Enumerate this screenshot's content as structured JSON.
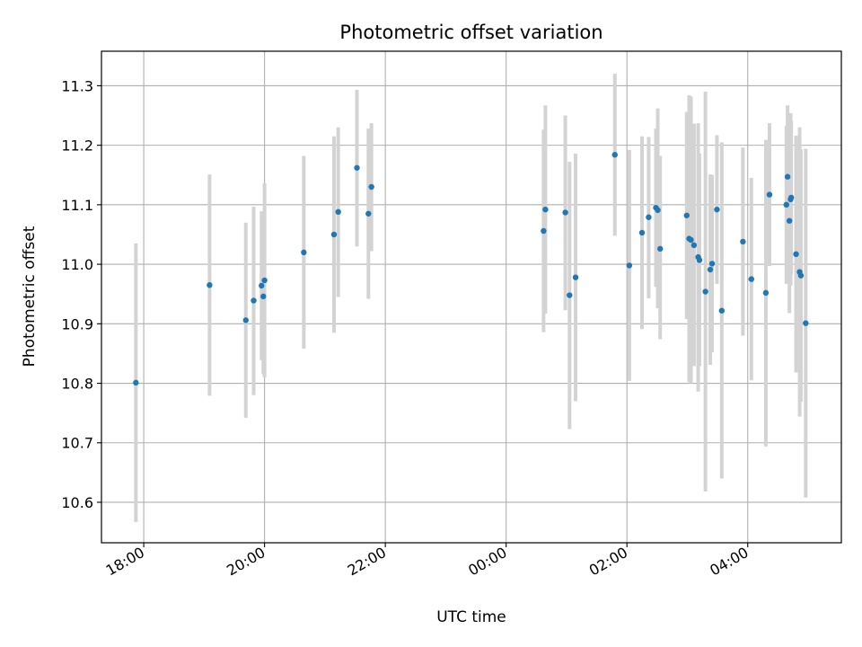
{
  "chart_data": {
    "type": "scatter",
    "title": "Photometric offset variation",
    "xlabel": "UTC time",
    "ylabel": "Photometric offset",
    "x_unit": "hours since 00:00 UTC of first day",
    "xlim": [
      -6.7,
      5.55
    ],
    "ylim": [
      10.532,
      11.358
    ],
    "xticks": [
      {
        "value": -6,
        "label": "18:00"
      },
      {
        "value": -4,
        "label": "20:00"
      },
      {
        "value": -2,
        "label": "22:00"
      },
      {
        "value": 0,
        "label": "00:00"
      },
      {
        "value": 2,
        "label": "02:00"
      },
      {
        "value": 4,
        "label": "04:00"
      }
    ],
    "yticks": [
      {
        "value": 10.6,
        "label": "10.6"
      },
      {
        "value": 10.7,
        "label": "10.7"
      },
      {
        "value": 10.8,
        "label": "10.8"
      },
      {
        "value": 10.9,
        "label": "10.9"
      },
      {
        "value": 11.0,
        "label": "11.0"
      },
      {
        "value": 11.1,
        "label": "11.1"
      },
      {
        "value": 11.2,
        "label": "11.2"
      },
      {
        "value": 11.3,
        "label": "11.3"
      }
    ],
    "grid": true,
    "colors": {
      "point": "#1f77b4",
      "errorbar": "#d3d3d3",
      "grid": "#b0b0b0"
    },
    "points": [
      {
        "x": -6.13,
        "y": 10.801,
        "lo": 10.567,
        "hi": 11.035
      },
      {
        "x": -4.91,
        "y": 10.965,
        "lo": 10.779,
        "hi": 11.151
      },
      {
        "x": -4.31,
        "y": 10.906,
        "lo": 10.742,
        "hi": 11.07
      },
      {
        "x": -4.18,
        "y": 10.939,
        "lo": 10.78,
        "hi": 11.097
      },
      {
        "x": -4.05,
        "y": 10.964,
        "lo": 10.839,
        "hi": 11.089
      },
      {
        "x": -4.02,
        "y": 10.946,
        "lo": 10.815,
        "hi": 11.077
      },
      {
        "x": -4.0,
        "y": 10.973,
        "lo": 10.81,
        "hi": 11.136
      },
      {
        "x": -3.35,
        "y": 11.02,
        "lo": 10.858,
        "hi": 11.182
      },
      {
        "x": -2.85,
        "y": 11.05,
        "lo": 10.885,
        "hi": 11.215
      },
      {
        "x": -2.78,
        "y": 11.088,
        "lo": 10.945,
        "hi": 11.23
      },
      {
        "x": -2.47,
        "y": 11.162,
        "lo": 11.03,
        "hi": 11.293
      },
      {
        "x": -2.28,
        "y": 11.085,
        "lo": 10.942,
        "hi": 11.228
      },
      {
        "x": -2.23,
        "y": 11.13,
        "lo": 11.022,
        "hi": 11.237
      },
      {
        "x": 0.62,
        "y": 11.056,
        "lo": 10.886,
        "hi": 11.226
      },
      {
        "x": 0.65,
        "y": 11.092,
        "lo": 10.917,
        "hi": 11.267
      },
      {
        "x": 0.98,
        "y": 11.087,
        "lo": 10.923,
        "hi": 11.25
      },
      {
        "x": 1.05,
        "y": 10.948,
        "lo": 10.723,
        "hi": 11.172
      },
      {
        "x": 1.15,
        "y": 10.978,
        "lo": 10.77,
        "hi": 11.186
      },
      {
        "x": 1.8,
        "y": 11.184,
        "lo": 11.048,
        "hi": 11.32
      },
      {
        "x": 2.04,
        "y": 10.998,
        "lo": 10.804,
        "hi": 11.192
      },
      {
        "x": 2.25,
        "y": 11.053,
        "lo": 10.891,
        "hi": 11.215
      },
      {
        "x": 2.36,
        "y": 11.079,
        "lo": 10.943,
        "hi": 11.214
      },
      {
        "x": 2.48,
        "y": 11.095,
        "lo": 10.962,
        "hi": 11.228
      },
      {
        "x": 2.51,
        "y": 11.091,
        "lo": 10.926,
        "hi": 11.262
      },
      {
        "x": 2.55,
        "y": 11.026,
        "lo": 10.874,
        "hi": 11.182
      },
      {
        "x": 2.99,
        "y": 11.082,
        "lo": 10.908,
        "hi": 11.256
      },
      {
        "x": 3.03,
        "y": 11.043,
        "lo": 10.802,
        "hi": 11.284
      },
      {
        "x": 3.06,
        "y": 11.041,
        "lo": 10.8,
        "hi": 11.282
      },
      {
        "x": 3.11,
        "y": 11.032,
        "lo": 10.829,
        "hi": 11.236
      },
      {
        "x": 3.18,
        "y": 11.012,
        "lo": 10.786,
        "hi": 11.237
      },
      {
        "x": 3.2,
        "y": 11.007,
        "lo": 10.829,
        "hi": 11.186
      },
      {
        "x": 3.3,
        "y": 10.954,
        "lo": 10.618,
        "hi": 11.29
      },
      {
        "x": 3.38,
        "y": 10.991,
        "lo": 10.831,
        "hi": 11.151
      },
      {
        "x": 3.41,
        "y": 11.001,
        "lo": 10.852,
        "hi": 11.15
      },
      {
        "x": 3.49,
        "y": 11.092,
        "lo": 10.967,
        "hi": 11.217
      },
      {
        "x": 3.57,
        "y": 10.922,
        "lo": 10.64,
        "hi": 11.205
      },
      {
        "x": 3.92,
        "y": 11.038,
        "lo": 10.88,
        "hi": 11.196
      },
      {
        "x": 4.06,
        "y": 10.975,
        "lo": 10.805,
        "hi": 11.145
      },
      {
        "x": 4.3,
        "y": 10.952,
        "lo": 10.694,
        "hi": 11.209
      },
      {
        "x": 4.36,
        "y": 11.117,
        "lo": 10.997,
        "hi": 11.237
      },
      {
        "x": 4.64,
        "y": 11.1,
        "lo": 10.967,
        "hi": 11.233
      },
      {
        "x": 4.66,
        "y": 11.147,
        "lo": 11.027,
        "hi": 11.267
      },
      {
        "x": 4.69,
        "y": 11.073,
        "lo": 10.918,
        "hi": 11.227
      },
      {
        "x": 4.71,
        "y": 11.109,
        "lo": 10.964,
        "hi": 11.254
      },
      {
        "x": 4.72,
        "y": 11.112,
        "lo": 10.983,
        "hi": 11.241
      },
      {
        "x": 4.8,
        "y": 11.017,
        "lo": 10.818,
        "hi": 11.216
      },
      {
        "x": 4.86,
        "y": 10.987,
        "lo": 10.744,
        "hi": 11.23
      },
      {
        "x": 4.88,
        "y": 10.981,
        "lo": 10.769,
        "hi": 11.193
      },
      {
        "x": 4.96,
        "y": 10.901,
        "lo": 10.608,
        "hi": 11.194
      }
    ]
  }
}
